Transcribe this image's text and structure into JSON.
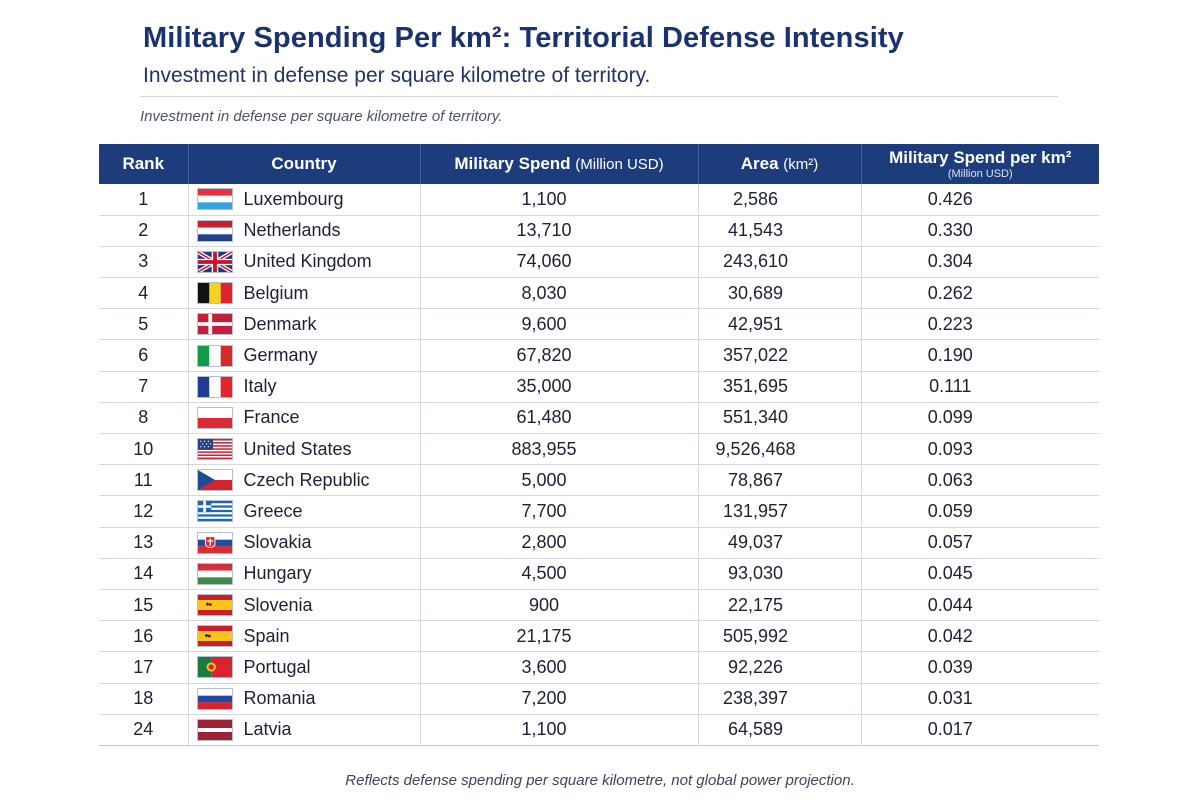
{
  "header": {
    "title": "Military Spending Per km²: Territorial Defense Intensity",
    "subtitle": "Investment in defense per square kilometre of territory.",
    "lead": "Investment in defense per square kilometre of territory."
  },
  "table": {
    "columns": {
      "rank": "Rank",
      "country": "Country",
      "spend": "Military Spend",
      "spend_unit": "(Million USD)",
      "area": "Area",
      "area_unit": "(km²)",
      "per": "Military Spend per km²",
      "per_unit": "(Million USD)"
    },
    "rows": [
      {
        "rank": "1",
        "country": "Luxembourg",
        "flag": "flag-luxembourg-icon",
        "spend": "1,100",
        "area": "2,586",
        "per": "0.426"
      },
      {
        "rank": "2",
        "country": "Netherlands",
        "flag": "flag-netherlands-icon",
        "spend": "13,710",
        "area": "41,543",
        "per": "0.330"
      },
      {
        "rank": "3",
        "country": "United Kingdom",
        "flag": "flag-united-kingdom-icon",
        "spend": "74,060",
        "area": "243,610",
        "per": "0.304"
      },
      {
        "rank": "4",
        "country": "Belgium",
        "flag": "flag-belgium-icon",
        "spend": "8,030",
        "area": "30,689",
        "per": "0.262"
      },
      {
        "rank": "5",
        "country": "Denmark",
        "flag": "flag-denmark-icon",
        "spend": "9,600",
        "area": "42,951",
        "per": "0.223"
      },
      {
        "rank": "6",
        "country": "Germany",
        "flag": "flag-italy-style-icon",
        "spend": "67,820",
        "area": "357,022",
        "per": "0.190"
      },
      {
        "rank": "7",
        "country": "Italy",
        "flag": "flag-france-style-icon",
        "spend": "35,000",
        "area": "351,695",
        "per": "0.111"
      },
      {
        "rank": "8",
        "country": "France",
        "flag": "flag-poland-style-icon",
        "spend": "61,480",
        "area": "551,340",
        "per": "0.099"
      },
      {
        "rank": "10",
        "country": "United States",
        "flag": "flag-united-states-icon",
        "spend": "883,955",
        "area": "9,526,468",
        "per": "0.093"
      },
      {
        "rank": "11",
        "country": "Czech Republic",
        "flag": "flag-czech-republic-icon",
        "spend": "5,000",
        "area": "78,867",
        "per": "0.063"
      },
      {
        "rank": "12",
        "country": "Greece",
        "flag": "flag-greece-icon",
        "spend": "7,700",
        "area": "131,957",
        "per": "0.059"
      },
      {
        "rank": "13",
        "country": "Slovakia",
        "flag": "flag-slovakia-icon",
        "spend": "2,800",
        "area": "49,037",
        "per": "0.057"
      },
      {
        "rank": "14",
        "country": "Hungary",
        "flag": "flag-hungary-icon",
        "spend": "4,500",
        "area": "93,030",
        "per": "0.045"
      },
      {
        "rank": "15",
        "country": "Slovenia",
        "flag": "flag-spain-style-icon",
        "spend": "900",
        "area": "22,175",
        "per": "0.044"
      },
      {
        "rank": "16",
        "country": "Spain",
        "flag": "flag-spain-icon",
        "spend": "21,175",
        "area": "505,992",
        "per": "0.042"
      },
      {
        "rank": "17",
        "country": "Portugal",
        "flag": "flag-portugal-icon",
        "spend": "3,600",
        "area": "92,226",
        "per": "0.039"
      },
      {
        "rank": "18",
        "country": "Romania",
        "flag": "flag-russia-style-icon",
        "spend": "7,200",
        "area": "238,397",
        "per": "0.031"
      },
      {
        "rank": "24",
        "country": "Latvia",
        "flag": "flag-latvia-icon",
        "spend": "1,100",
        "area": "64,589",
        "per": "0.017"
      }
    ]
  },
  "footnote": "Reflects defense spending per square kilometre, not global power projection.",
  "colors": {
    "header_bg": "#1d3c7c",
    "title": "#1a3370",
    "grid": "#d3d9e4"
  }
}
